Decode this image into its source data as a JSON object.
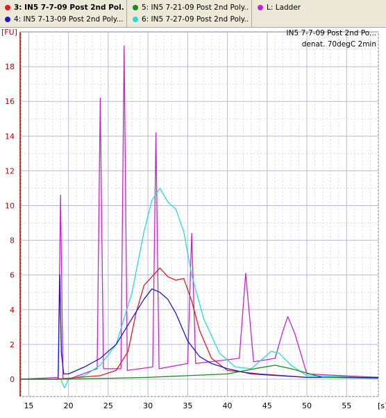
{
  "legend": {
    "items": [
      {
        "label": "3: IN5 7-7-09 Post 2nd Pol...",
        "color": "#e31a1c",
        "bold": true
      },
      {
        "label": "5: IN5 7-21-09 Post 2nd Poly...",
        "color": "#1a8a1a",
        "bold": false
      },
      {
        "label": "L: Ladder",
        "color": "#cc22cc",
        "bold": false
      },
      {
        "label": "4: IN5 7-13-09 Post 2nd Poly...",
        "color": "#1a1acc",
        "bold": false
      },
      {
        "label": "6: IN5 7-27-09 Post 2nd Poly...",
        "color": "#22dddd",
        "bold": false
      }
    ]
  },
  "info": {
    "line1": "IN5 7-7-09 Post 2nd Po...",
    "line2": "denat. 70degC 2min"
  },
  "chart_data": {
    "type": "line",
    "ylabel": "[FU]",
    "xlabel": "[s]",
    "xlim": [
      14,
      59
    ],
    "ylim": [
      -1,
      20
    ],
    "x_ticks": [
      15,
      20,
      25,
      30,
      35,
      40,
      45,
      50,
      55
    ],
    "y_ticks": [
      0,
      2,
      4,
      6,
      8,
      10,
      12,
      14,
      16,
      18
    ],
    "grid": true,
    "series": [
      {
        "name": "L: Ladder",
        "color": "#cc22cc",
        "x": [
          14,
          18.7,
          19,
          19.3,
          20,
          23.6,
          24,
          24.4,
          26.6,
          27,
          27.4,
          30.6,
          31,
          31.4,
          35,
          35.5,
          36,
          41.5,
          42.3,
          43.3,
          46,
          47,
          47.6,
          48.5,
          50,
          59
        ],
        "y": [
          0,
          0.1,
          10.6,
          0,
          0,
          0.6,
          16.2,
          0.6,
          0.6,
          19.2,
          0.5,
          0.7,
          14.2,
          0.6,
          0.9,
          8.4,
          0.9,
          1.2,
          6.1,
          1.0,
          1.2,
          2.8,
          3.6,
          2.6,
          0.3,
          0.1
        ]
      },
      {
        "name": "3: IN5 7-7-09 Post 2nd Pol...",
        "color": "#e31a1c",
        "x": [
          14,
          18,
          20,
          24,
          26,
          27.5,
          28.5,
          29.5,
          30.5,
          31.5,
          32.5,
          33.5,
          34.5,
          35.5,
          36.5,
          38,
          40,
          44,
          50,
          59
        ],
        "y": [
          0,
          0,
          0.05,
          0.2,
          0.5,
          1.6,
          3.8,
          5.4,
          5.9,
          6.4,
          5.9,
          5.7,
          5.8,
          4.5,
          2.8,
          1.2,
          0.5,
          0.3,
          0.1,
          0.1
        ]
      },
      {
        "name": "4: IN5 7-13-09 Post 2nd Poly...",
        "color": "#1a1acc",
        "x": [
          14,
          18.7,
          18.9,
          19.1,
          19.4,
          20,
          22,
          24,
          26,
          28,
          29.5,
          30.5,
          31.5,
          32.5,
          33.5,
          35,
          36.5,
          38,
          40,
          43,
          50,
          59
        ],
        "y": [
          0,
          0,
          6.0,
          1.5,
          0.3,
          0.3,
          0.7,
          1.2,
          2.0,
          3.5,
          4.6,
          5.2,
          5.0,
          4.6,
          3.8,
          2.2,
          1.3,
          0.9,
          0.6,
          0.3,
          0.1,
          0.1
        ]
      },
      {
        "name": "5: IN5 7-21-09 Post 2nd Poly...",
        "color": "#1a8a1a",
        "x": [
          14,
          20,
          30,
          40,
          44,
          46,
          48,
          52,
          59
        ],
        "y": [
          0,
          0,
          0.1,
          0.3,
          0.65,
          0.8,
          0.6,
          0.1,
          0.05
        ]
      },
      {
        "name": "6: IN5 7-27-09 Post 2nd Poly...",
        "color": "#22dddd",
        "x": [
          14,
          19,
          19.5,
          20,
          22,
          24,
          26,
          28,
          29.5,
          30.5,
          31.5,
          32.5,
          33.5,
          34.5,
          35.5,
          37,
          39,
          41,
          43,
          44.5,
          45.5,
          46.5,
          48,
          50,
          59
        ],
        "y": [
          0,
          0,
          -0.5,
          0,
          0.2,
          0.8,
          2.0,
          5.0,
          8.5,
          10.3,
          11.0,
          10.2,
          9.8,
          8.5,
          6.0,
          3.5,
          1.5,
          0.7,
          0.6,
          1.2,
          1.6,
          1.5,
          0.8,
          0.2,
          0.1
        ]
      }
    ]
  }
}
